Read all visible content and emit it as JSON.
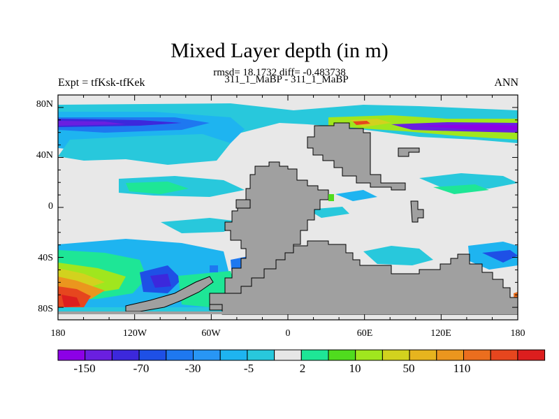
{
  "title": "Mixed Layer depth (in m)",
  "subtitle": "rmsd= 18.1732 diff= -0.483738",
  "left_label": "Expt = tfKsk-tfKek",
  "center_label": "311_1_MaBP - 311_1_MaBP",
  "right_label": "ANN",
  "map": {
    "lon_ticks": [
      "180",
      "120W",
      "60W",
      "0",
      "60E",
      "120E",
      "180"
    ],
    "lat_ticks": [
      "80N",
      "40N",
      "0",
      "40S",
      "80S"
    ],
    "land_color": "#a0a0a0",
    "zero_color": "#e8e8e8"
  },
  "colorbar": {
    "colors": [
      "#8c00e6",
      "#6a1fe0",
      "#3c28dc",
      "#1e50e6",
      "#1e78f0",
      "#2896f5",
      "#1eb4f0",
      "#28c8dc",
      "#e6e6e6",
      "#1ee696",
      "#50dc1e",
      "#a0e61e",
      "#d2d21e",
      "#e6b41e",
      "#eb961e",
      "#eb6e1e",
      "#e6461e",
      "#dc1e1e"
    ],
    "labels": [
      "-150",
      "-70",
      "-30",
      "-5",
      "2",
      "10",
      "50",
      "110"
    ]
  }
}
